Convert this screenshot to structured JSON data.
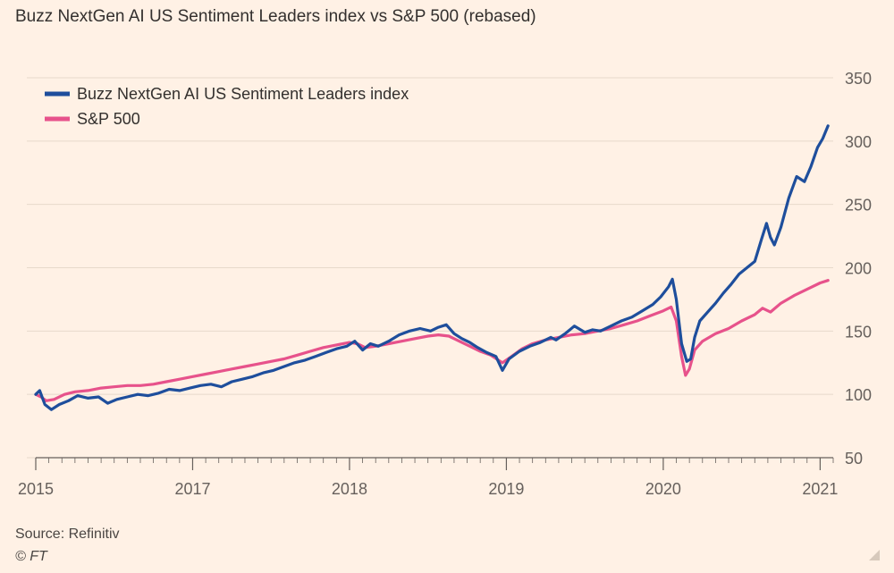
{
  "title": "Buzz NextGen AI US Sentiment Leaders index vs S&P 500 (rebased)",
  "source": "Source: Refinitiv",
  "copyright": "© FT",
  "colors": {
    "background": "#FFF1E5",
    "buzz": "#1E4E9C",
    "sp500": "#E7528B",
    "grid": "#E7D9CB",
    "axis": "#66605C"
  },
  "chart_data": {
    "type": "line",
    "ylim": [
      50,
      350
    ],
    "yticks": [
      50,
      100,
      150,
      200,
      250,
      300,
      350
    ],
    "xlim": [
      2015.0,
      2021.1
    ],
    "xtick_labels": [
      {
        "x": 2015.0,
        "label": "2015"
      },
      {
        "x": 2016.2,
        "label": "2017"
      },
      {
        "x": 2017.4,
        "label": "2018"
      },
      {
        "x": 2018.6,
        "label": "2019"
      },
      {
        "x": 2019.8,
        "label": "2020"
      },
      {
        "x": 2021.0,
        "label": "2021"
      }
    ],
    "legend_position": "top-left",
    "series": [
      {
        "name": "Buzz NextGen AI US Sentiment Leaders index",
        "color": "#1E4E9C",
        "points": [
          [
            2015.0,
            100
          ],
          [
            2015.03,
            103
          ],
          [
            2015.07,
            92
          ],
          [
            2015.12,
            88
          ],
          [
            2015.18,
            92
          ],
          [
            2015.25,
            95
          ],
          [
            2015.32,
            99
          ],
          [
            2015.4,
            97
          ],
          [
            2015.48,
            98
          ],
          [
            2015.55,
            93
          ],
          [
            2015.62,
            96
          ],
          [
            2015.7,
            98
          ],
          [
            2015.78,
            100
          ],
          [
            2015.86,
            99
          ],
          [
            2015.94,
            101
          ],
          [
            2016.02,
            104
          ],
          [
            2016.1,
            103
          ],
          [
            2016.18,
            105
          ],
          [
            2016.26,
            107
          ],
          [
            2016.34,
            108
          ],
          [
            2016.42,
            106
          ],
          [
            2016.5,
            110
          ],
          [
            2016.58,
            112
          ],
          [
            2016.66,
            114
          ],
          [
            2016.74,
            117
          ],
          [
            2016.82,
            119
          ],
          [
            2016.9,
            122
          ],
          [
            2016.98,
            125
          ],
          [
            2017.06,
            127
          ],
          [
            2017.14,
            130
          ],
          [
            2017.22,
            133
          ],
          [
            2017.3,
            136
          ],
          [
            2017.38,
            138
          ],
          [
            2017.44,
            142
          ],
          [
            2017.5,
            135
          ],
          [
            2017.56,
            140
          ],
          [
            2017.62,
            138
          ],
          [
            2017.7,
            142
          ],
          [
            2017.78,
            147
          ],
          [
            2017.86,
            150
          ],
          [
            2017.94,
            152
          ],
          [
            2018.02,
            150
          ],
          [
            2018.08,
            153
          ],
          [
            2018.14,
            155
          ],
          [
            2018.2,
            148
          ],
          [
            2018.26,
            144
          ],
          [
            2018.32,
            141
          ],
          [
            2018.38,
            137
          ],
          [
            2018.45,
            133
          ],
          [
            2018.52,
            130
          ],
          [
            2018.57,
            119
          ],
          [
            2018.62,
            128
          ],
          [
            2018.7,
            134
          ],
          [
            2018.78,
            138
          ],
          [
            2018.86,
            141
          ],
          [
            2018.94,
            145
          ],
          [
            2018.98,
            143
          ],
          [
            2019.05,
            148
          ],
          [
            2019.12,
            154
          ],
          [
            2019.2,
            149
          ],
          [
            2019.26,
            151
          ],
          [
            2019.32,
            150
          ],
          [
            2019.4,
            154
          ],
          [
            2019.48,
            158
          ],
          [
            2019.56,
            161
          ],
          [
            2019.64,
            166
          ],
          [
            2019.72,
            171
          ],
          [
            2019.78,
            177
          ],
          [
            2019.84,
            185
          ],
          [
            2019.87,
            191
          ],
          [
            2019.9,
            175
          ],
          [
            2019.94,
            140
          ],
          [
            2019.98,
            126
          ],
          [
            2020.01,
            128
          ],
          [
            2020.04,
            145
          ],
          [
            2020.08,
            158
          ],
          [
            2020.14,
            165
          ],
          [
            2020.2,
            172
          ],
          [
            2020.26,
            180
          ],
          [
            2020.32,
            187
          ],
          [
            2020.38,
            195
          ],
          [
            2020.44,
            200
          ],
          [
            2020.5,
            205
          ],
          [
            2020.55,
            222
          ],
          [
            2020.59,
            235
          ],
          [
            2020.62,
            224
          ],
          [
            2020.65,
            218
          ],
          [
            2020.7,
            232
          ],
          [
            2020.76,
            255
          ],
          [
            2020.82,
            272
          ],
          [
            2020.88,
            268
          ],
          [
            2020.93,
            280
          ],
          [
            2020.98,
            295
          ],
          [
            2021.02,
            302
          ],
          [
            2021.06,
            312
          ]
        ]
      },
      {
        "name": "S&P 500",
        "color": "#E7528B",
        "points": [
          [
            2015.0,
            100
          ],
          [
            2015.04,
            98
          ],
          [
            2015.08,
            95
          ],
          [
            2015.14,
            96
          ],
          [
            2015.22,
            100
          ],
          [
            2015.3,
            102
          ],
          [
            2015.4,
            103
          ],
          [
            2015.5,
            105
          ],
          [
            2015.6,
            106
          ],
          [
            2015.7,
            107
          ],
          [
            2015.8,
            107
          ],
          [
            2015.9,
            108
          ],
          [
            2016.0,
            110
          ],
          [
            2016.1,
            112
          ],
          [
            2016.2,
            114
          ],
          [
            2016.3,
            116
          ],
          [
            2016.4,
            118
          ],
          [
            2016.5,
            120
          ],
          [
            2016.6,
            122
          ],
          [
            2016.7,
            124
          ],
          [
            2016.8,
            126
          ],
          [
            2016.9,
            128
          ],
          [
            2017.0,
            131
          ],
          [
            2017.1,
            134
          ],
          [
            2017.2,
            137
          ],
          [
            2017.3,
            139
          ],
          [
            2017.4,
            141
          ],
          [
            2017.46,
            140
          ],
          [
            2017.52,
            137
          ],
          [
            2017.6,
            138
          ],
          [
            2017.7,
            140
          ],
          [
            2017.8,
            142
          ],
          [
            2017.9,
            144
          ],
          [
            2018.0,
            146
          ],
          [
            2018.08,
            147
          ],
          [
            2018.16,
            146
          ],
          [
            2018.24,
            142
          ],
          [
            2018.32,
            138
          ],
          [
            2018.4,
            134
          ],
          [
            2018.48,
            131
          ],
          [
            2018.57,
            125
          ],
          [
            2018.64,
            130
          ],
          [
            2018.72,
            136
          ],
          [
            2018.8,
            140
          ],
          [
            2018.9,
            143
          ],
          [
            2019.0,
            145
          ],
          [
            2019.1,
            147
          ],
          [
            2019.2,
            148
          ],
          [
            2019.3,
            150
          ],
          [
            2019.4,
            152
          ],
          [
            2019.5,
            155
          ],
          [
            2019.6,
            158
          ],
          [
            2019.7,
            162
          ],
          [
            2019.8,
            166
          ],
          [
            2019.86,
            169
          ],
          [
            2019.9,
            158
          ],
          [
            2019.94,
            130
          ],
          [
            2019.97,
            115
          ],
          [
            2020.0,
            120
          ],
          [
            2020.04,
            135
          ],
          [
            2020.1,
            142
          ],
          [
            2020.2,
            148
          ],
          [
            2020.3,
            152
          ],
          [
            2020.4,
            158
          ],
          [
            2020.5,
            163
          ],
          [
            2020.56,
            168
          ],
          [
            2020.62,
            165
          ],
          [
            2020.7,
            172
          ],
          [
            2020.8,
            178
          ],
          [
            2020.9,
            183
          ],
          [
            2021.0,
            188
          ],
          [
            2021.06,
            190
          ]
        ]
      }
    ]
  }
}
